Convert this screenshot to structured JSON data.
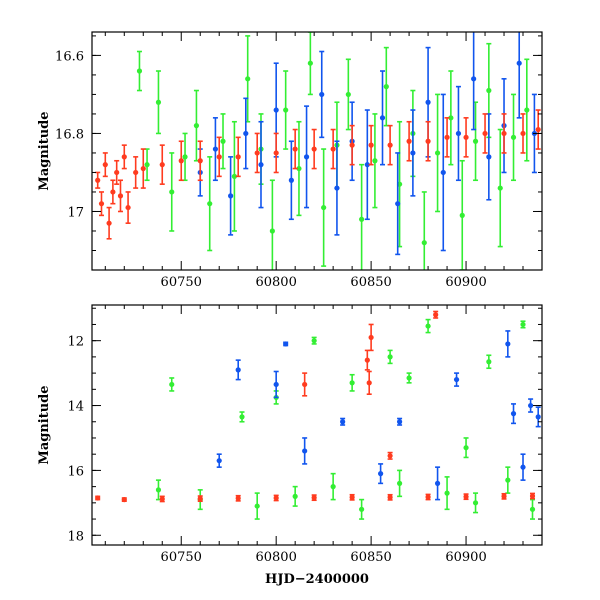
{
  "chart_data": [
    {
      "type": "scatter",
      "title": "",
      "xlabel": "",
      "ylabel": "Magnitude",
      "xlim": [
        60703,
        60940
      ],
      "ylim": [
        17.15,
        16.54
      ],
      "y_inverted": true,
      "xticks": [
        60750,
        60800,
        60850,
        60900
      ],
      "xtick_labels": [
        "60750",
        "60800",
        "60850",
        "60900"
      ],
      "yticks": [
        16.6,
        16.8,
        17.0
      ],
      "ytick_labels": [
        "16.6",
        "16.8",
        "17"
      ],
      "error_bars": true,
      "series": [
        {
          "color": "#33ee33",
          "x": [
            60728,
            60732,
            60738,
            60745,
            60752,
            60758,
            60765,
            60772,
            60778,
            60785,
            60792,
            60798,
            60805,
            60812,
            60818,
            60825,
            60832,
            60838,
            60845,
            60852,
            60858,
            60865,
            60872,
            60878,
            60885,
            60892,
            60898,
            60905,
            60912,
            60918,
            60925,
            60932
          ],
          "y": [
            16.64,
            16.88,
            16.72,
            16.95,
            16.86,
            16.78,
            16.98,
            16.82,
            16.91,
            16.66,
            16.84,
            17.05,
            16.74,
            16.89,
            16.62,
            16.99,
            16.83,
            16.7,
            17.02,
            16.87,
            16.68,
            16.93,
            16.8,
            17.08,
            16.85,
            16.76,
            17.01,
            16.82,
            16.69,
            16.94,
            16.81,
            16.74
          ],
          "err": [
            0.05,
            0.04,
            0.08,
            0.1,
            0.06,
            0.09,
            0.12,
            0.07,
            0.14,
            0.11,
            0.09,
            0.13,
            0.1,
            0.12,
            0.08,
            0.15,
            0.11,
            0.09,
            0.14,
            0.12,
            0.1,
            0.16,
            0.11,
            0.13,
            0.15,
            0.12,
            0.14,
            0.1,
            0.12,
            0.15,
            0.11,
            0.13
          ]
        },
        {
          "color": "#1155ee",
          "x": [
            60760,
            60768,
            60776,
            60784,
            60792,
            60800,
            60808,
            60816,
            60824,
            60832,
            60840,
            60848,
            60856,
            60864,
            60872,
            60880,
            60888,
            60896,
            60904,
            60912,
            60920,
            60928,
            60936
          ],
          "y": [
            16.9,
            16.84,
            16.96,
            16.8,
            16.88,
            16.74,
            16.92,
            16.86,
            16.7,
            16.94,
            16.82,
            16.88,
            16.76,
            16.98,
            16.85,
            16.72,
            16.9,
            16.8,
            16.66,
            16.86,
            16.78,
            16.62,
            16.8
          ],
          "err": [
            0.06,
            0.08,
            0.1,
            0.09,
            0.11,
            0.12,
            0.1,
            0.13,
            0.11,
            0.12,
            0.1,
            0.14,
            0.12,
            0.13,
            0.11,
            0.14,
            0.2,
            0.12,
            0.13,
            0.11,
            0.12,
            0.14,
            0.1
          ]
        },
        {
          "color": "#ff3b1f",
          "x": [
            60706,
            60708,
            60710,
            60712,
            60714,
            60716,
            60718,
            60720,
            60722,
            60726,
            60730,
            60740,
            60750,
            60760,
            60770,
            60780,
            60790,
            60800,
            60810,
            60820,
            60830,
            60840,
            60850,
            60860,
            60870,
            60880,
            60890,
            60900,
            60910,
            60920,
            60930,
            60938
          ],
          "y": [
            16.92,
            16.98,
            16.88,
            17.03,
            16.95,
            16.9,
            16.96,
            16.86,
            16.99,
            16.9,
            16.89,
            16.88,
            16.87,
            16.87,
            16.86,
            16.86,
            16.85,
            16.85,
            16.84,
            16.84,
            16.84,
            16.83,
            16.83,
            16.83,
            16.82,
            16.82,
            16.81,
            16.81,
            16.8,
            16.8,
            16.8,
            16.79
          ],
          "err": [
            0.02,
            0.03,
            0.03,
            0.04,
            0.03,
            0.03,
            0.04,
            0.03,
            0.04,
            0.04,
            0.05,
            0.05,
            0.05,
            0.05,
            0.05,
            0.05,
            0.05,
            0.05,
            0.05,
            0.05,
            0.05,
            0.05,
            0.05,
            0.05,
            0.05,
            0.05,
            0.05,
            0.05,
            0.05,
            0.05,
            0.05,
            0.05
          ]
        }
      ]
    },
    {
      "type": "scatter",
      "title": "",
      "xlabel": "HJD−2400000",
      "ylabel": "Magnitude",
      "xlim": [
        60703,
        60940
      ],
      "ylim": [
        18.3,
        10.9
      ],
      "y_inverted": true,
      "xticks": [
        60750,
        60800,
        60850,
        60900
      ],
      "xtick_labels": [
        "60750",
        "60800",
        "60850",
        "60900"
      ],
      "yticks": [
        12,
        14,
        16,
        18
      ],
      "ytick_labels": [
        "12",
        "14",
        "16",
        "18"
      ],
      "error_bars": true,
      "series": [
        {
          "color": "#33ee33",
          "x": [
            60745,
            60782,
            60800,
            60820,
            60840,
            60860,
            60870,
            60880,
            60900,
            60912,
            60930,
            60738,
            60760,
            60790,
            60810,
            60830,
            60845,
            60865,
            60890,
            60905,
            60922,
            60935
          ],
          "y": [
            13.35,
            14.35,
            13.75,
            12.0,
            13.3,
            12.5,
            13.15,
            11.55,
            15.3,
            12.65,
            11.5,
            16.6,
            16.9,
            17.1,
            16.8,
            16.5,
            17.2,
            16.4,
            16.7,
            17.0,
            16.3,
            17.2
          ],
          "err": [
            0.2,
            0.15,
            0.2,
            0.1,
            0.25,
            0.2,
            0.15,
            0.2,
            0.3,
            0.2,
            0.1,
            0.3,
            0.3,
            0.4,
            0.3,
            0.4,
            0.3,
            0.4,
            0.5,
            0.3,
            0.4,
            0.3
          ]
        },
        {
          "color": "#1155ee",
          "x": [
            60780,
            60800,
            60805,
            60835,
            60865,
            60895,
            60922,
            60925,
            60934,
            60938,
            60770,
            60815,
            60855,
            60885,
            60930
          ],
          "y": [
            12.9,
            13.35,
            12.1,
            14.5,
            14.5,
            13.2,
            12.1,
            14.25,
            14.0,
            14.35,
            15.7,
            15.4,
            16.1,
            16.4,
            15.9
          ],
          "err": [
            0.3,
            0.4,
            0.05,
            0.1,
            0.1,
            0.2,
            0.4,
            0.3,
            0.2,
            0.3,
            0.2,
            0.4,
            0.3,
            0.5,
            0.4
          ]
        },
        {
          "color": "#ff3b1f",
          "x": [
            60815,
            60848,
            60849,
            60850,
            60860,
            60884,
            60706,
            60720,
            60740,
            60760,
            60780,
            60800,
            60820,
            60840,
            60860,
            60880,
            60900,
            60920,
            60935
          ],
          "y": [
            13.35,
            12.6,
            13.3,
            11.9,
            15.55,
            11.2,
            16.85,
            16.9,
            16.88,
            16.87,
            16.86,
            16.85,
            16.84,
            16.83,
            16.83,
            16.82,
            16.81,
            16.8,
            16.79
          ],
          "err": [
            0.35,
            0.3,
            0.35,
            0.4,
            0.1,
            0.1,
            0.05,
            0.05,
            0.08,
            0.08,
            0.08,
            0.08,
            0.08,
            0.08,
            0.08,
            0.08,
            0.08,
            0.08,
            0.08
          ]
        }
      ]
    }
  ]
}
